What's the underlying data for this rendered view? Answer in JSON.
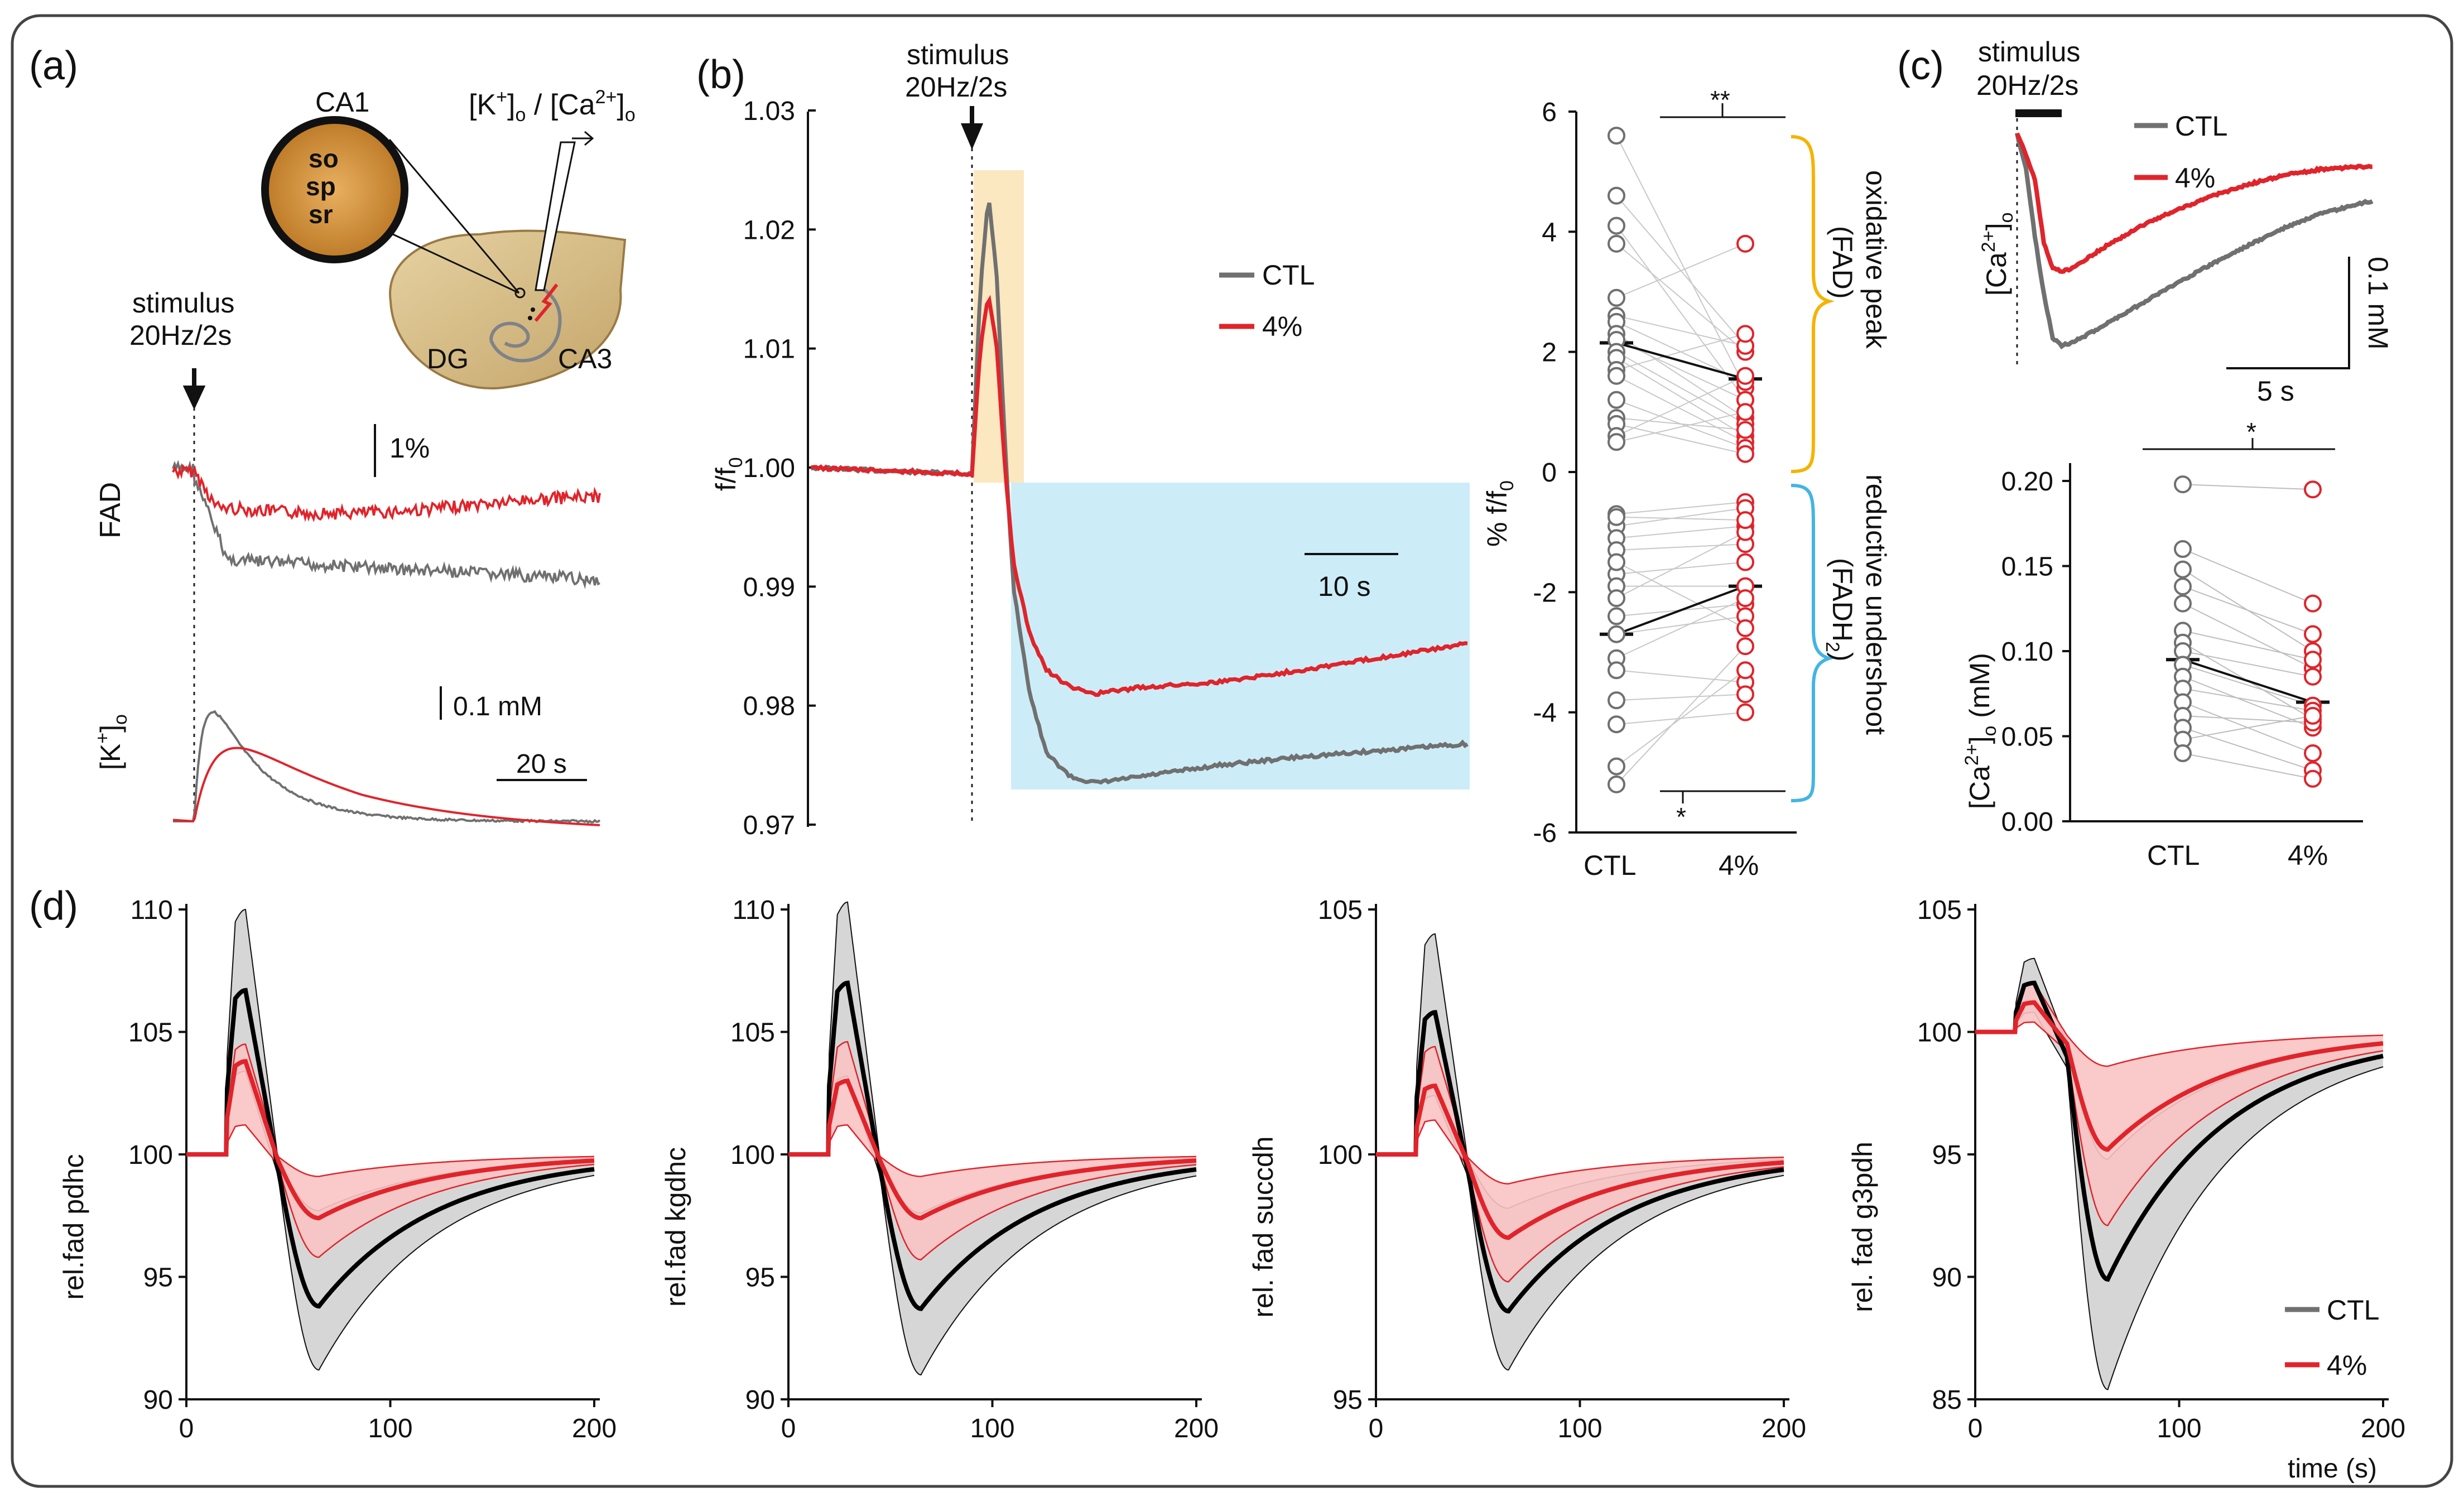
{
  "panel_labels": {
    "a": "(a)",
    "b": "(b)",
    "c": "(c)",
    "d": "(d)"
  },
  "colors": {
    "ctl": "#707070",
    "pct4": "#e0242b",
    "ctl_dark": "#000000",
    "orange": "#f5b300",
    "blue": "#45b4e2",
    "box_orange": "#fbe7c0",
    "box_blue": "#ccedf8",
    "band_gray": "#d6d6d6",
    "band_red": "#f9c3c3"
  },
  "panel_a": {
    "ca1_label": "CA1",
    "layers": [
      "so",
      "sp",
      "sr"
    ],
    "electrode_label": "[K+]o / [Ca2+]o",
    "electrode_main_1": "[K",
    "electrode_sup_1": "+",
    "electrode_main_2": "]",
    "electrode_sub_1": "o",
    "electrode_sep": " / [Ca",
    "electrode_sup_2": "2+",
    "electrode_main_3": "]",
    "electrode_sub_2": "o",
    "dg_label": "DG",
    "ca3_label": "CA3",
    "stimulus_line1": "stimulus",
    "stimulus_line2": "20Hz/2s",
    "fad_label": "FAD",
    "scale_fad": "1%",
    "k_label_main": "[K",
    "k_label_sup": "+",
    "k_label_end": "]",
    "k_label_sub": "o",
    "scale_k": "0.1 mM",
    "scale_time": "20 s"
  },
  "panel_b": {
    "stimulus_line1": "stimulus",
    "stimulus_line2": "20Hz/2s",
    "ylabel_main": "f/f",
    "ylabel_sub": "0",
    "legend": [
      "CTL",
      "4%"
    ],
    "scale_time": "10 s"
  },
  "panel_b_scatter": {
    "ylabel_main": "% f/f",
    "ylabel_sub": "0",
    "sig_top": "**",
    "sig_bottom": "*",
    "brace_top_line1": "oxidative peak",
    "brace_top_line2": "(FAD)",
    "brace_bottom_line1": "reductive undershoot",
    "brace_bottom_line2_main": "(FADH",
    "brace_bottom_line2_sub": "2",
    "brace_bottom_line2_end": ")"
  },
  "panel_c": {
    "stimulus_line1": "stimulus",
    "stimulus_line2": "20Hz/2s",
    "legend": [
      "CTL",
      "4%"
    ],
    "ylabel_main": "[Ca",
    "ylabel_sup": "2+",
    "ylabel_end": "]",
    "ylabel_sub": "o",
    "scale_conc": "0.1 mM",
    "scale_time": "5 s",
    "sig": "*",
    "scatter_ylabel_main": "[Ca",
    "scatter_ylabel_sup": "2+",
    "scatter_ylabel_end": "]",
    "scatter_ylabel_sub": "o",
    "scatter_ylabel_unit": " (mM)"
  },
  "panel_d": {
    "legend": [
      "CTL",
      "4%"
    ],
    "xlabel": "time (s)"
  },
  "chart_data": [
    {
      "id": "b_trace",
      "type": "line",
      "title": "",
      "xlabel": "",
      "ylabel": "f/f0",
      "ylim": [
        0.97,
        1.03
      ],
      "yticks": [
        0.97,
        0.98,
        0.99,
        1.0,
        1.01,
        1.02,
        1.03
      ],
      "ytick_labels": [
        "0.97",
        "0.98",
        "0.99",
        "1.00",
        "1.01",
        "1.02",
        "1.03"
      ],
      "series": [
        {
          "name": "CTL",
          "x": [
            -20,
            -2,
            0,
            1,
            2,
            3,
            4,
            5,
            7,
            9,
            12,
            15,
            20,
            30,
            40,
            60
          ],
          "values": [
            1.0,
            0.9995,
            0.9995,
            1.015,
            1.023,
            1.016,
            1.002,
            0.99,
            0.981,
            0.976,
            0.974,
            0.9735,
            0.974,
            0.975,
            0.9757,
            0.9768
          ]
        },
        {
          "name": "4%",
          "x": [
            -20,
            -2,
            0,
            1,
            2,
            3,
            4,
            5,
            7,
            9,
            12,
            15,
            20,
            30,
            40,
            60
          ],
          "values": [
            1.0,
            0.9995,
            0.9995,
            1.01,
            1.0145,
            1.01,
            1.0,
            0.992,
            0.986,
            0.983,
            0.9815,
            0.981,
            0.9815,
            0.982,
            0.983,
            0.9852
          ]
        }
      ]
    },
    {
      "id": "b_scatter",
      "type": "scatter",
      "categories": [
        "CTL",
        "4%"
      ],
      "ylim": [
        -6,
        6
      ],
      "yticks": [
        -6,
        -4,
        -2,
        0,
        2,
        4,
        6
      ],
      "ytick_labels": [
        "-6",
        "-4",
        "-2",
        "0",
        "2",
        "4",
        "6"
      ],
      "oxidative_pairs": [
        [
          5.6,
          1.4
        ],
        [
          4.6,
          2.1
        ],
        [
          4.1,
          1.2
        ],
        [
          3.8,
          2.0
        ],
        [
          2.9,
          3.8
        ],
        [
          2.6,
          2.1
        ],
        [
          2.5,
          1.5
        ],
        [
          2.3,
          0.9
        ],
        [
          2.2,
          1.2
        ],
        [
          2.0,
          0.8
        ],
        [
          1.9,
          0.6
        ],
        [
          1.7,
          2.3
        ],
        [
          1.6,
          0.5
        ],
        [
          1.2,
          0.4
        ],
        [
          0.9,
          0.7
        ],
        [
          0.8,
          0.3
        ],
        [
          0.6,
          1.6
        ],
        [
          0.5,
          1.0
        ]
      ],
      "oxidative_means": [
        2.15,
        1.55
      ],
      "reductive_pairs": [
        [
          -0.7,
          -0.5
        ],
        [
          -0.9,
          -0.6
        ],
        [
          -1.1,
          -0.9
        ],
        [
          -1.3,
          -1.2
        ],
        [
          -1.7,
          -1.5
        ],
        [
          -1.9,
          -1.9
        ],
        [
          -2.1,
          -1.0
        ],
        [
          -2.4,
          -2.2
        ],
        [
          -2.7,
          -2.4
        ],
        [
          -3.1,
          -2.1
        ],
        [
          -3.3,
          -3.5
        ],
        [
          -3.8,
          -3.7
        ],
        [
          -4.2,
          -4.0
        ],
        [
          -4.9,
          -3.3
        ],
        [
          -5.2,
          -2.9
        ],
        [
          -0.75,
          -0.8
        ],
        [
          -1.5,
          -2.6
        ]
      ],
      "reductive_means": [
        -2.7,
        -1.9
      ]
    },
    {
      "id": "c_trace",
      "type": "line",
      "series": [
        {
          "name": "CTL",
          "x": [
            0,
            0.5,
            1,
            1.5,
            2,
            2.5,
            3,
            4,
            5,
            7,
            9,
            11,
            13,
            15,
            17,
            20
          ],
          "values": [
            0,
            -0.03,
            -0.09,
            -0.14,
            -0.178,
            -0.185,
            -0.183,
            -0.175,
            -0.166,
            -0.148,
            -0.13,
            -0.113,
            -0.097,
            -0.082,
            -0.07,
            -0.058
          ]
        },
        {
          "name": "4%",
          "x": [
            0,
            0.5,
            1,
            1.5,
            2,
            2.5,
            3,
            4,
            5,
            7,
            9,
            11,
            13,
            15,
            17,
            20
          ],
          "values": [
            0,
            -0.018,
            -0.04,
            -0.095,
            -0.118,
            -0.12,
            -0.118,
            -0.108,
            -0.098,
            -0.08,
            -0.066,
            -0.054,
            -0.044,
            -0.036,
            -0.031,
            -0.028
          ]
        }
      ]
    },
    {
      "id": "c_scatter",
      "type": "scatter",
      "categories": [
        "CTL",
        "4%"
      ],
      "ylim": [
        0,
        0.2
      ],
      "yticks": [
        0,
        0.05,
        0.1,
        0.15,
        0.2
      ],
      "ytick_labels": [
        "0.00",
        "0.05",
        "0.10",
        "0.15",
        "0.20"
      ],
      "pairs": [
        [
          0.198,
          0.195
        ],
        [
          0.16,
          0.128
        ],
        [
          0.148,
          0.1
        ],
        [
          0.138,
          0.11
        ],
        [
          0.128,
          0.09
        ],
        [
          0.112,
          0.095
        ],
        [
          0.105,
          0.06
        ],
        [
          0.1,
          0.085
        ],
        [
          0.092,
          0.068
        ],
        [
          0.085,
          0.055
        ],
        [
          0.078,
          0.065
        ],
        [
          0.07,
          0.04
        ],
        [
          0.062,
          0.058
        ],
        [
          0.055,
          0.03
        ],
        [
          0.048,
          0.062
        ],
        [
          0.04,
          0.025
        ]
      ],
      "means": [
        0.095,
        0.07
      ]
    },
    {
      "id": "d1",
      "type": "area",
      "ylabel": "rel.fad pdhc",
      "xlim": [
        0,
        200
      ],
      "xticks": [
        0,
        100,
        200
      ],
      "xtick_labels": [
        "0",
        "100",
        "200"
      ],
      "ylim": [
        90,
        110
      ],
      "yticks": [
        90,
        95,
        100,
        105,
        110
      ],
      "ytick_labels": [
        "90",
        "95",
        "100",
        "105",
        "110"
      ],
      "ctl": {
        "peak": 6.7,
        "peak_upper": 10.0,
        "peak_lower": 3.4,
        "trough": -6.2,
        "trough_upper": -2.3,
        "trough_lower": -8.8
      },
      "pct4": {
        "peak": 3.8,
        "peak_upper": 4.5,
        "peak_lower": 1.2,
        "trough": -2.6,
        "trough_upper": -0.9,
        "trough_lower": -4.2
      }
    },
    {
      "id": "d2",
      "type": "area",
      "ylabel": "rel.fad kgdhc",
      "xlim": [
        0,
        200
      ],
      "xticks": [
        0,
        100,
        200
      ],
      "xtick_labels": [
        "0",
        "100",
        "200"
      ],
      "ylim": [
        90,
        110
      ],
      "yticks": [
        90,
        95,
        100,
        105,
        110
      ],
      "ytick_labels": [
        "90",
        "95",
        "100",
        "105",
        "110"
      ],
      "ctl": {
        "peak": 7.0,
        "peak_upper": 10.3,
        "peak_lower": 3.2,
        "trough": -6.3,
        "trough_upper": -2.4,
        "trough_lower": -9.0
      },
      "pct4": {
        "peak": 3.0,
        "peak_upper": 4.6,
        "peak_lower": 1.2,
        "trough": -2.6,
        "trough_upper": -0.9,
        "trough_lower": -4.3
      }
    },
    {
      "id": "d3",
      "type": "area",
      "ylabel": "rel. fad succdh",
      "xlim": [
        0,
        200
      ],
      "xticks": [
        0,
        100,
        200
      ],
      "xtick_labels": [
        "0",
        "100",
        "200"
      ],
      "ylim": [
        95,
        105
      ],
      "yticks": [
        95,
        100,
        105
      ],
      "ytick_labels": [
        "95",
        "100",
        "105"
      ],
      "ctl": {
        "peak": 2.9,
        "peak_upper": 4.5,
        "peak_lower": 1.2,
        "trough": -3.2,
        "trough_upper": -1.1,
        "trough_lower": -4.4
      },
      "pct4": {
        "peak": 1.4,
        "peak_upper": 2.2,
        "peak_lower": 0.7,
        "trough": -1.7,
        "trough_upper": -0.6,
        "trough_lower": -2.6
      }
    },
    {
      "id": "d4",
      "type": "area",
      "ylabel": "rel. fad g3pdh",
      "xlim": [
        0,
        200
      ],
      "xticks": [
        0,
        100,
        200
      ],
      "xtick_labels": [
        "0",
        "100",
        "200"
      ],
      "ylim": [
        85,
        105
      ],
      "yticks": [
        85,
        90,
        95,
        100,
        105
      ],
      "ytick_labels": [
        "85",
        "90",
        "95",
        "100",
        "105"
      ],
      "ctl": {
        "peak": 2.0,
        "peak_upper": 3.0,
        "peak_lower": 0.8,
        "trough": -10.1,
        "trough_upper": -5.2,
        "trough_lower": -14.6
      },
      "pct4": {
        "peak": 1.2,
        "peak_upper": 2.0,
        "peak_lower": 0.4,
        "trough": -4.8,
        "trough_upper": -1.4,
        "trough_lower": -7.9
      }
    }
  ]
}
